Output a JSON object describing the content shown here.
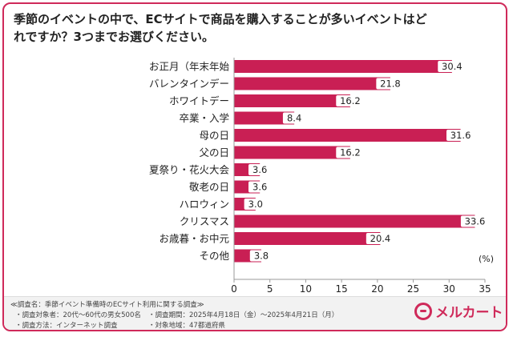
{
  "title": "季節のイベントの中で、ECサイトで商品を購入することが多いイベントはど\nれですか？3つまでお選びください。",
  "unit_label": "(%)",
  "colors": {
    "bar": "#c91f54",
    "frame": "#cf2a5a",
    "label_bg": "#ffffff"
  },
  "chart_data": {
    "type": "bar",
    "orientation": "horizontal",
    "categories": [
      "お正月（年末年始",
      "バレンタインデー",
      "ホワイトデー",
      "卒業・入学",
      "母の日",
      "父の日",
      "夏祭り・花火大会",
      "敬老の日",
      "ハロウィン",
      "クリスマス",
      "お歳暮・お中元",
      "その他"
    ],
    "values": [
      30.4,
      21.8,
      16.2,
      8.4,
      31.6,
      16.2,
      3.6,
      3.6,
      3.0,
      33.6,
      20.4,
      3.8
    ],
    "value_labels": [
      "30.4",
      "21.8",
      "16.2",
      "8.4",
      "31.6",
      "16.2",
      "3.6",
      "3.6",
      "3.0",
      "33.6",
      "20.4",
      "3.8"
    ],
    "xlim": [
      0,
      35
    ],
    "ticks": [
      "0",
      "5",
      "10",
      "15",
      "20",
      "25",
      "30",
      "35"
    ],
    "grid": false
  },
  "footer": {
    "line1": "≪調査名：季節イベント準備時のECサイト利用に関する調査≫",
    "line2a": "・調査対象者：20代～60代の男女500名",
    "line2b": "・調査期間：2025年4月18日（金）～2025年4月21日（月）",
    "line3a": "・調査方法：インターネット調査",
    "line3b": "・対象地域：47都道府県"
  },
  "logo": {
    "text": "メルカート",
    "icon": "mercart-logo-icon"
  }
}
